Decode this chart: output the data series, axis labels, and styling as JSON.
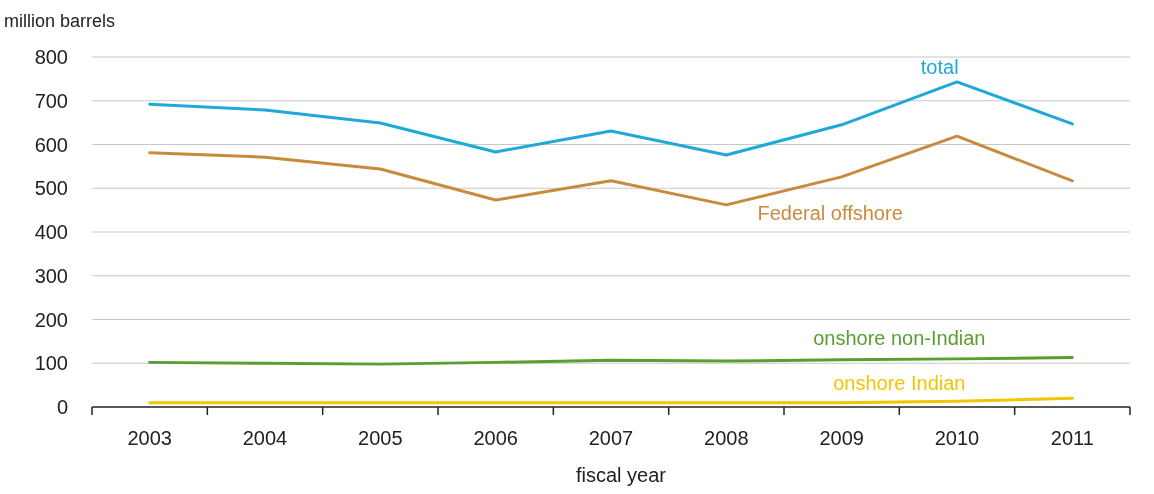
{
  "chart_data": {
    "type": "line",
    "ylabel": "million barrels",
    "xlabel": "fiscal year",
    "categories": [
      "2003",
      "2004",
      "2005",
      "2006",
      "2007",
      "2008",
      "2009",
      "2010",
      "2011"
    ],
    "series": [
      {
        "name": "total",
        "color": "#1ea9d8",
        "values": [
          692,
          679,
          649,
          583,
          631,
          576,
          645,
          743,
          647
        ]
      },
      {
        "name": "Federal offshore",
        "color": "#c98a3c",
        "values": [
          581,
          571,
          544,
          473,
          517,
          462,
          526,
          619,
          517
        ]
      },
      {
        "name": "onshore non-Indian",
        "color": "#5a9e2f",
        "values": [
          102,
          100,
          98,
          102,
          107,
          105,
          108,
          110,
          113
        ]
      },
      {
        "name": "onshore Indian",
        "color": "#f2c500",
        "values": [
          10,
          10,
          10,
          10,
          10,
          10,
          10,
          13,
          20
        ]
      }
    ],
    "ylim": [
      0,
      800
    ],
    "yticks": [
      0,
      100,
      200,
      300,
      400,
      500,
      600,
      700,
      800
    ],
    "grid": "y",
    "marker": "none",
    "line_style": "solid"
  }
}
